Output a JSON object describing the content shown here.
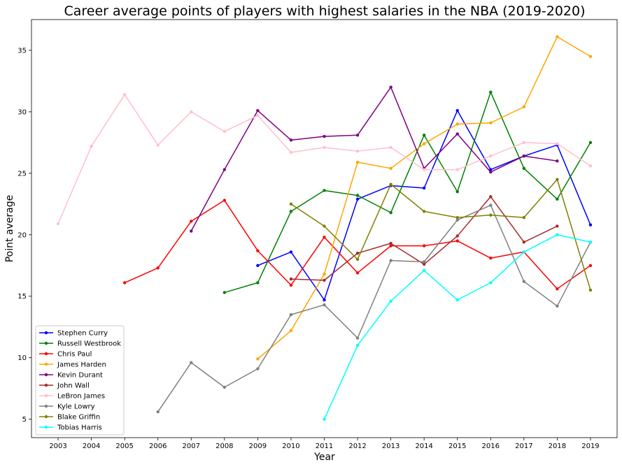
{
  "chart_data": {
    "type": "line",
    "title": "Career average points of players with highest salaries in the NBA (2019-2020)",
    "xlabel": "Year",
    "ylabel": "Point average",
    "xlim": [
      2002.2,
      2019.8
    ],
    "ylim": [
      3.5,
      37.5
    ],
    "x_ticks": [
      2003,
      2004,
      2005,
      2006,
      2007,
      2008,
      2009,
      2010,
      2011,
      2012,
      2013,
      2014,
      2015,
      2016,
      2017,
      2018,
      2019
    ],
    "y_ticks": [
      5,
      10,
      15,
      20,
      25,
      30,
      35
    ],
    "grid": false,
    "legend_position": "lower-left",
    "series": [
      {
        "name": "Stephen Curry",
        "color": "#0000ff",
        "x": [
          2009,
          2010,
          2011,
          2012,
          2013,
          2014,
          2015,
          2016,
          2017,
          2018,
          2019
        ],
        "y": [
          17.5,
          18.6,
          14.7,
          22.9,
          24.0,
          23.8,
          30.1,
          25.3,
          26.4,
          27.3,
          20.8
        ]
      },
      {
        "name": "Russell Westbrook",
        "color": "#008000",
        "x": [
          2008,
          2009,
          2010,
          2011,
          2012,
          2013,
          2014,
          2015,
          2016,
          2017,
          2018,
          2019
        ],
        "y": [
          15.3,
          16.1,
          21.9,
          23.6,
          23.2,
          21.8,
          28.1,
          23.5,
          31.6,
          25.4,
          22.9,
          27.5
        ]
      },
      {
        "name": "Chris Paul",
        "color": "#ff0000",
        "x": [
          2005,
          2006,
          2007,
          2008,
          2009,
          2010,
          2011,
          2012,
          2013,
          2014,
          2015,
          2016,
          2017,
          2018,
          2019
        ],
        "y": [
          16.1,
          17.3,
          21.1,
          22.8,
          18.7,
          15.9,
          19.8,
          16.9,
          19.1,
          19.1,
          19.5,
          18.1,
          18.6,
          15.6,
          17.5
        ]
      },
      {
        "name": "James Harden",
        "color": "#ffa500",
        "x": [
          2009,
          2010,
          2011,
          2012,
          2013,
          2014,
          2015,
          2016,
          2017,
          2018,
          2019
        ],
        "y": [
          9.9,
          12.2,
          16.8,
          25.9,
          25.4,
          27.4,
          29.0,
          29.1,
          30.4,
          36.1,
          34.5
        ]
      },
      {
        "name": "Kevin Durant",
        "color": "#800080",
        "x": [
          2007,
          2008,
          2009,
          2010,
          2011,
          2012,
          2013,
          2014,
          2015,
          2016,
          2017,
          2018
        ],
        "y": [
          20.3,
          25.3,
          30.1,
          27.7,
          28.0,
          28.1,
          32.0,
          25.4,
          28.2,
          25.1,
          26.4,
          26.0
        ]
      },
      {
        "name": "John Wall",
        "color": "#a52a2a",
        "x": [
          2010,
          2011,
          2012,
          2013,
          2014,
          2015,
          2016,
          2017,
          2018
        ],
        "y": [
          16.4,
          16.3,
          18.5,
          19.3,
          17.6,
          19.9,
          23.1,
          19.4,
          20.7
        ]
      },
      {
        "name": "LeBron James",
        "color": "#ffc0cb",
        "x": [
          2003,
          2004,
          2005,
          2006,
          2007,
          2008,
          2009,
          2010,
          2011,
          2012,
          2013,
          2014,
          2015,
          2016,
          2017,
          2018,
          2019
        ],
        "y": [
          20.9,
          27.2,
          31.4,
          27.3,
          30.0,
          28.4,
          29.7,
          26.7,
          27.1,
          26.8,
          27.1,
          25.3,
          25.3,
          26.4,
          27.5,
          27.4,
          25.6
        ]
      },
      {
        "name": "Kyle Lowry",
        "color": "#808080",
        "x": [
          2006,
          2007,
          2008,
          2009,
          2010,
          2011,
          2012,
          2013,
          2014,
          2015,
          2016,
          2017,
          2018,
          2019
        ],
        "y": [
          5.6,
          9.6,
          7.6,
          9.1,
          13.5,
          14.3,
          11.6,
          17.9,
          17.8,
          21.2,
          22.4,
          16.2,
          14.2,
          19.4
        ]
      },
      {
        "name": "Blake Griffin",
        "color": "#808000",
        "x": [
          2010,
          2011,
          2012,
          2013,
          2014,
          2015,
          2016,
          2017,
          2018,
          2019
        ],
        "y": [
          22.5,
          20.7,
          18.0,
          24.1,
          21.9,
          21.4,
          21.6,
          21.4,
          24.5,
          15.5
        ]
      },
      {
        "name": "Tobias Harris",
        "color": "#00ffff",
        "x": [
          2011,
          2012,
          2013,
          2014,
          2015,
          2016,
          2017,
          2018,
          2019
        ],
        "y": [
          5.0,
          11.0,
          14.6,
          17.1,
          14.7,
          16.1,
          18.6,
          20.0,
          19.4
        ]
      }
    ]
  }
}
